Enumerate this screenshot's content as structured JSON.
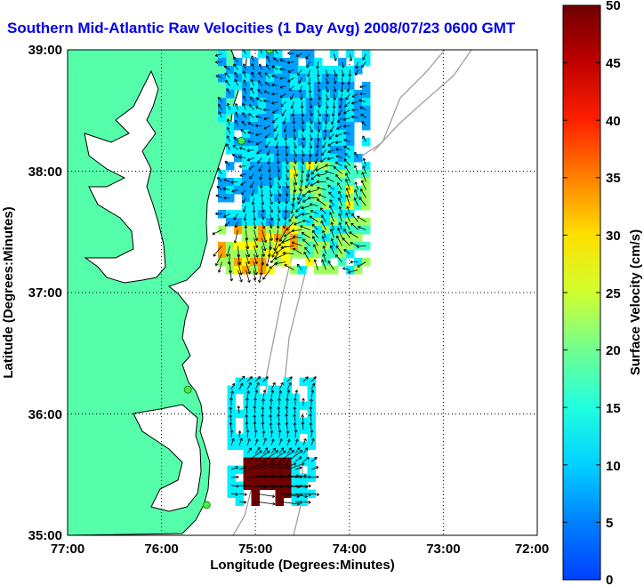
{
  "title": "Southern Mid-Atlantic Raw Velocities (1 Day Avg) 2008/07/23 0600 GMT",
  "xaxis": {
    "label": "Longitude (Degrees:Minutes)",
    "ticks": [
      "77:00",
      "76:00",
      "75:00",
      "74:00",
      "73:00",
      "72:00"
    ],
    "range_deg_west": [
      77,
      72
    ]
  },
  "yaxis": {
    "label": "Latitude (Degrees:Minutes)",
    "ticks": [
      "39:00",
      "38:00",
      "37:00",
      "36:00",
      "35:00"
    ],
    "range_deg_north": [
      35,
      39
    ]
  },
  "colorbar": {
    "label": "Surface Velocity (cm/s)",
    "ticks": [
      "50",
      "45",
      "40",
      "35",
      "30",
      "25",
      "20",
      "15",
      "10",
      "5",
      "0"
    ],
    "range": [
      0,
      50
    ],
    "colors": [
      "#0040ff",
      "#00a0ff",
      "#00f0ff",
      "#40ffc0",
      "#a0ff60",
      "#ffff00",
      "#ffa000",
      "#ff4000",
      "#c00000",
      "#700000"
    ]
  },
  "colors": {
    "land": "#55ffaa",
    "coast": "#000000",
    "bathymetry": "#a0a0a0",
    "station": "#44ee44",
    "title": "#0000ee"
  },
  "chart_data": {
    "type": "heatmap",
    "description_fields": "vector field of surface currents over two radar-covered patches",
    "xlim_lon_west": [
      77,
      72
    ],
    "ylim_lat_north": [
      35,
      39
    ],
    "clim_cm_s": [
      0,
      50
    ],
    "regions": [
      {
        "name": "northern-patch",
        "lat_range": [
          37.2,
          39.0
        ],
        "lon_range_west": [
          75.4,
          73.8
        ],
        "typical_speed_cm_s": 8,
        "max_speed_cm_s": 32
      },
      {
        "name": "southern-patch",
        "lat_range": [
          35.3,
          36.3
        ],
        "lon_range_west": [
          75.3,
          74.4
        ],
        "typical_speed_cm_s": 10,
        "max_speed_cm_s": 50
      }
    ],
    "stations": [
      {
        "lat": 39.0,
        "lon_west": 74.85
      },
      {
        "lat": 38.25,
        "lon_west": 75.15
      },
      {
        "lat": 36.2,
        "lon_west": 75.72
      },
      {
        "lat": 35.25,
        "lon_west": 75.52
      }
    ]
  }
}
